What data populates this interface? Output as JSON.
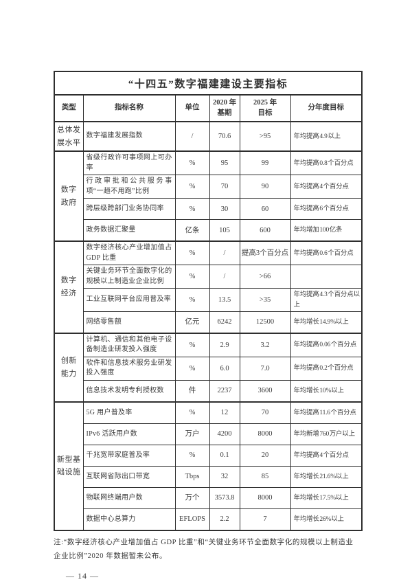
{
  "table": {
    "title": "“十四五”数字福建建设主要指标",
    "headers": [
      "类型",
      "指标名称",
      "单位",
      "2020 年\n基期",
      "2025 年\n目标",
      "分年度目标"
    ],
    "groups": [
      {
        "type": "总体发\n展水平",
        "rows": [
          [
            "数字福建发展指数",
            "/",
            "70.6",
            ">95",
            "年均提高 4.9 以上"
          ]
        ]
      },
      {
        "type": "数字\n政府",
        "rows": [
          [
            "省级行政许可事项网上可办率",
            "%",
            "95",
            "99",
            "年均提高 0.8 个百分点"
          ],
          [
            "行政审批和公共服务事项“一趟不用跑”比例",
            "%",
            "70",
            "90",
            "年均提高 4 个百分点"
          ],
          [
            "跨层级跨部门业务协同率",
            "%",
            "30",
            "60",
            "年均提高 6 个百分点"
          ],
          [
            "政务数据汇聚量",
            "亿条",
            "105",
            "600",
            "年均增加 100 亿条"
          ]
        ]
      },
      {
        "type": "数字\n经济",
        "rows": [
          [
            "数字经济核心产业增加值占 GDP 比重",
            "%",
            "/",
            "提高3个百分点",
            "年均提高 0.6 个百分点"
          ],
          [
            "关键业务环节全面数字化的规模以上制造业企业比例",
            "%",
            "/",
            ">66",
            ""
          ],
          [
            "工业互联网平台应用普及率",
            "%",
            "13.5",
            ">35",
            "年均提高 4.3 个百分点以上"
          ],
          [
            "网络零售额",
            "亿元",
            "6242",
            "12500",
            "年均增长 14.9%以上"
          ]
        ]
      },
      {
        "type": "创新\n能力",
        "rows": [
          [
            "计算机、通信和其他电子设备制造业研发投入强度",
            "%",
            "2.9",
            "3.2",
            "年均提高 0.06 个百分点"
          ],
          [
            "软件和信息技术服务业研发投入强度",
            "%",
            "6.0",
            "7.0",
            "年均提高 0.2 个百分点"
          ],
          [
            "信息技术发明专利授权数",
            "件",
            "2237",
            "3600",
            "年均增长 10%以上"
          ]
        ]
      },
      {
        "type": "新型基\n础设施",
        "rows": [
          [
            "5G 用户普及率",
            "%",
            "12",
            "70",
            "年均提高 11.6 个百分点"
          ],
          [
            "IPv6 活跃用户数",
            "万户",
            "4200",
            "8000",
            "年均新增 760 万户以上"
          ],
          [
            "千兆宽带家庭普及率",
            "%",
            "0.1",
            "20",
            "年均提高 4 个百分点"
          ],
          [
            "互联网省际出口带宽",
            "Tbps",
            "32",
            "85",
            "年均增长 21.6%以上"
          ],
          [
            "物联网终端用户数",
            "万个",
            "3573.8",
            "8000",
            "年均增长 17.5%以上"
          ],
          [
            "数据中心总算力",
            "EFLOPS",
            "2.2",
            "7",
            "年均增长 26%以上"
          ]
        ]
      }
    ]
  },
  "note": "注:“数字经济核心产业增加值占 GDP 比重”和“关键业务环节全面数字化的规模以上制造业\n企业比例”2020 年数据暂未公布。",
  "page_number": "— 14 —"
}
